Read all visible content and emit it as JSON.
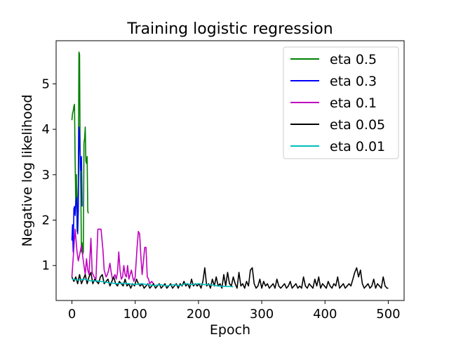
{
  "chart_data": {
    "type": "line",
    "title": "Training logistic regression",
    "xlabel": "Epoch",
    "ylabel": "Negative log likelihood",
    "xlim": [
      -25,
      525
    ],
    "ylim": [
      0.23,
      5.95
    ],
    "xticks": [
      0,
      100,
      200,
      300,
      400,
      500
    ],
    "yticks": [
      1,
      2,
      3,
      4,
      5
    ],
    "grid": false,
    "legend_position": "upper right",
    "series": [
      {
        "name": "eta 0.5",
        "color": "#008000",
        "points": [
          [
            0,
            4.2
          ],
          [
            1,
            4.35
          ],
          [
            2,
            4.4
          ],
          [
            3,
            4.5
          ],
          [
            4,
            4.55
          ],
          [
            5,
            3.3
          ],
          [
            6,
            2.4
          ],
          [
            7,
            3.0
          ],
          [
            8,
            1.75
          ],
          [
            9,
            2.4
          ],
          [
            10,
            2.8
          ],
          [
            11,
            5.7
          ],
          [
            12,
            5.65
          ],
          [
            13,
            3.2
          ],
          [
            14,
            2.6
          ],
          [
            15,
            1.3
          ],
          [
            16,
            1.5
          ],
          [
            17,
            1.25
          ],
          [
            18,
            1.3
          ],
          [
            19,
            3.7
          ],
          [
            20,
            3.8
          ],
          [
            21,
            4.05
          ],
          [
            22,
            3.3
          ],
          [
            23,
            3.25
          ],
          [
            24,
            3.4
          ],
          [
            25,
            2.2
          ],
          [
            26,
            2.15
          ]
        ]
      },
      {
        "name": "eta 0.3",
        "color": "#0000ff",
        "points": [
          [
            0,
            1.55
          ],
          [
            1,
            1.9
          ],
          [
            2,
            1.3
          ],
          [
            3,
            2.25
          ],
          [
            4,
            2.3
          ],
          [
            5,
            2.1
          ],
          [
            6,
            2.4
          ],
          [
            7,
            2.5
          ],
          [
            8,
            2.3
          ],
          [
            9,
            1.7
          ],
          [
            10,
            2.2
          ],
          [
            11,
            4.05
          ],
          [
            12,
            3.9
          ],
          [
            13,
            3.4
          ],
          [
            14,
            3.1
          ],
          [
            15,
            3.4
          ],
          [
            16,
            2.3
          ]
        ]
      },
      {
        "name": "eta 0.1",
        "color": "#bf00bf",
        "points": [
          [
            0,
            0.75
          ],
          [
            5,
            1.8
          ],
          [
            8,
            1.3
          ],
          [
            10,
            1.1
          ],
          [
            13,
            1.3
          ],
          [
            15,
            1.45
          ],
          [
            17,
            1.2
          ],
          [
            19,
            1.0
          ],
          [
            21,
            0.8
          ],
          [
            23,
            1.15
          ],
          [
            25,
            0.9
          ],
          [
            27,
            0.8
          ],
          [
            30,
            1.6
          ],
          [
            32,
            0.85
          ],
          [
            35,
            0.75
          ],
          [
            38,
            0.7
          ],
          [
            41,
            1.8
          ],
          [
            43,
            1.8
          ],
          [
            46,
            1.8
          ],
          [
            49,
            1.35
          ],
          [
            51,
            0.9
          ],
          [
            54,
            0.75
          ],
          [
            56,
            0.8
          ],
          [
            58,
            0.9
          ],
          [
            60,
            1.05
          ],
          [
            62,
            0.85
          ],
          [
            64,
            0.7
          ],
          [
            66,
            0.75
          ],
          [
            68,
            0.8
          ],
          [
            70,
            0.7
          ],
          [
            72,
            0.85
          ],
          [
            74,
            1.3
          ],
          [
            76,
            0.9
          ],
          [
            78,
            0.7
          ],
          [
            80,
            0.75
          ],
          [
            82,
            1.0
          ],
          [
            84,
            0.8
          ],
          [
            86,
            0.75
          ],
          [
            88,
            1.0
          ],
          [
            90,
            0.7
          ],
          [
            92,
            0.8
          ],
          [
            94,
            0.9
          ],
          [
            96,
            0.75
          ],
          [
            98,
            0.65
          ],
          [
            100,
            0.75
          ],
          [
            103,
            1.4
          ],
          [
            105,
            1.75
          ],
          [
            107,
            1.7
          ],
          [
            109,
            1.2
          ],
          [
            111,
            0.8
          ],
          [
            113,
            1.1
          ],
          [
            115,
            1.4
          ],
          [
            117,
            1.4
          ],
          [
            119,
            0.75
          ],
          [
            121,
            0.7
          ],
          [
            123,
            0.6
          ],
          [
            126,
            0.65
          ],
          [
            129,
            0.6
          ]
        ]
      },
      {
        "name": "eta 0.05",
        "color": "#000000",
        "points": [
          [
            0,
            0.75
          ],
          [
            3,
            0.65
          ],
          [
            6,
            0.75
          ],
          [
            9,
            0.6
          ],
          [
            12,
            0.8
          ],
          [
            15,
            0.6
          ],
          [
            18,
            0.7
          ],
          [
            21,
            0.8
          ],
          [
            24,
            0.6
          ],
          [
            27,
            0.75
          ],
          [
            30,
            0.85
          ],
          [
            33,
            0.6
          ],
          [
            36,
            0.7
          ],
          [
            39,
            0.65
          ],
          [
            42,
            0.6
          ],
          [
            45,
            0.75
          ],
          [
            48,
            0.8
          ],
          [
            51,
            0.6
          ],
          [
            54,
            0.65
          ],
          [
            57,
            0.7
          ],
          [
            60,
            0.55
          ],
          [
            63,
            0.65
          ],
          [
            66,
            0.75
          ],
          [
            69,
            0.6
          ],
          [
            72,
            0.55
          ],
          [
            75,
            0.65
          ],
          [
            78,
            0.6
          ],
          [
            81,
            0.55
          ],
          [
            84,
            0.7
          ],
          [
            87,
            0.55
          ],
          [
            90,
            0.6
          ],
          [
            93,
            0.5
          ],
          [
            96,
            0.6
          ],
          [
            99,
            0.55
          ],
          [
            102,
            0.7
          ],
          [
            105,
            0.6
          ],
          [
            108,
            0.55
          ],
          [
            111,
            0.6
          ],
          [
            114,
            0.5
          ],
          [
            117,
            0.55
          ],
          [
            120,
            0.6
          ],
          [
            123,
            0.5
          ],
          [
            126,
            0.55
          ],
          [
            129,
            0.6
          ],
          [
            132,
            0.5
          ],
          [
            135,
            0.55
          ],
          [
            138,
            0.6
          ],
          [
            141,
            0.5
          ],
          [
            144,
            0.55
          ],
          [
            147,
            0.6
          ],
          [
            150,
            0.5
          ],
          [
            153,
            0.55
          ],
          [
            156,
            0.6
          ],
          [
            159,
            0.5
          ],
          [
            162,
            0.55
          ],
          [
            165,
            0.6
          ],
          [
            168,
            0.5
          ],
          [
            171,
            0.6
          ],
          [
            174,
            0.55
          ],
          [
            177,
            0.65
          ],
          [
            180,
            0.55
          ],
          [
            183,
            0.6
          ],
          [
            186,
            0.5
          ],
          [
            189,
            0.7
          ],
          [
            192,
            0.55
          ],
          [
            195,
            0.6
          ],
          [
            198,
            0.55
          ],
          [
            201,
            0.6
          ],
          [
            204,
            0.5
          ],
          [
            207,
            0.65
          ],
          [
            210,
            0.95
          ],
          [
            213,
            0.55
          ],
          [
            216,
            0.6
          ],
          [
            219,
            0.5
          ],
          [
            222,
            0.7
          ],
          [
            225,
            0.55
          ],
          [
            228,
            0.75
          ],
          [
            231,
            0.55
          ],
          [
            234,
            0.6
          ],
          [
            237,
            0.5
          ],
          [
            240,
            0.8
          ],
          [
            243,
            0.55
          ],
          [
            246,
            0.85
          ],
          [
            249,
            0.6
          ],
          [
            252,
            0.55
          ],
          [
            255,
            0.75
          ],
          [
            258,
            0.6
          ],
          [
            261,
            0.5
          ],
          [
            264,
            0.85
          ],
          [
            267,
            0.55
          ],
          [
            270,
            0.6
          ],
          [
            273,
            0.5
          ],
          [
            276,
            0.65
          ],
          [
            279,
            0.55
          ],
          [
            282,
            0.9
          ],
          [
            285,
            0.95
          ],
          [
            288,
            0.6
          ],
          [
            291,
            0.5
          ],
          [
            294,
            0.55
          ],
          [
            297,
            0.7
          ],
          [
            300,
            0.5
          ],
          [
            303,
            0.65
          ],
          [
            306,
            0.55
          ],
          [
            309,
            0.6
          ],
          [
            312,
            0.5
          ],
          [
            315,
            0.55
          ],
          [
            318,
            0.6
          ],
          [
            321,
            0.5
          ],
          [
            324,
            0.7
          ],
          [
            327,
            0.55
          ],
          [
            330,
            0.5
          ],
          [
            333,
            0.55
          ],
          [
            336,
            0.6
          ],
          [
            339,
            0.5
          ],
          [
            342,
            0.55
          ],
          [
            345,
            0.65
          ],
          [
            348,
            0.5
          ],
          [
            351,
            0.55
          ],
          [
            354,
            0.6
          ],
          [
            357,
            0.5
          ],
          [
            360,
            0.55
          ],
          [
            363,
            0.5
          ],
          [
            366,
            0.75
          ],
          [
            369,
            0.55
          ],
          [
            372,
            0.5
          ],
          [
            375,
            0.6
          ],
          [
            378,
            0.55
          ],
          [
            381,
            0.5
          ],
          [
            384,
            0.7
          ],
          [
            387,
            0.55
          ],
          [
            390,
            0.75
          ],
          [
            393,
            0.5
          ],
          [
            396,
            0.6
          ],
          [
            399,
            0.55
          ],
          [
            402,
            0.5
          ],
          [
            405,
            0.65
          ],
          [
            408,
            0.55
          ],
          [
            411,
            0.5
          ],
          [
            414,
            0.6
          ],
          [
            417,
            0.55
          ],
          [
            420,
            0.75
          ],
          [
            423,
            0.5
          ],
          [
            426,
            0.55
          ],
          [
            429,
            0.6
          ],
          [
            432,
            0.5
          ],
          [
            435,
            0.55
          ],
          [
            438,
            0.6
          ],
          [
            441,
            0.55
          ],
          [
            444,
            0.7
          ],
          [
            447,
            0.85
          ],
          [
            450,
            0.95
          ],
          [
            453,
            0.75
          ],
          [
            456,
            0.9
          ],
          [
            459,
            0.6
          ],
          [
            462,
            0.5
          ],
          [
            465,
            0.55
          ],
          [
            468,
            0.6
          ],
          [
            471,
            0.5
          ],
          [
            474,
            0.55
          ],
          [
            477,
            0.7
          ],
          [
            480,
            0.5
          ],
          [
            483,
            0.6
          ],
          [
            486,
            0.55
          ],
          [
            489,
            0.5
          ],
          [
            492,
            0.75
          ],
          [
            495,
            0.55
          ],
          [
            498,
            0.5
          ],
          [
            500,
            0.5
          ]
        ]
      },
      {
        "name": "eta 0.01",
        "color": "#00bfbf",
        "points": [
          [
            0,
            0.7
          ],
          [
            10,
            0.68
          ],
          [
            20,
            0.7
          ],
          [
            30,
            0.66
          ],
          [
            40,
            0.66
          ],
          [
            50,
            0.64
          ],
          [
            60,
            0.62
          ],
          [
            70,
            0.6
          ],
          [
            80,
            0.61
          ],
          [
            90,
            0.6
          ],
          [
            100,
            0.58
          ],
          [
            110,
            0.6
          ],
          [
            120,
            0.58
          ],
          [
            130,
            0.56
          ],
          [
            140,
            0.58
          ],
          [
            150,
            0.55
          ],
          [
            160,
            0.58
          ],
          [
            170,
            0.56
          ],
          [
            180,
            0.6
          ],
          [
            190,
            0.58
          ],
          [
            200,
            0.6
          ],
          [
            210,
            0.58
          ],
          [
            220,
            0.58
          ],
          [
            230,
            0.55
          ],
          [
            240,
            0.54
          ],
          [
            250,
            0.54
          ],
          [
            255,
            0.53
          ]
        ]
      }
    ]
  }
}
